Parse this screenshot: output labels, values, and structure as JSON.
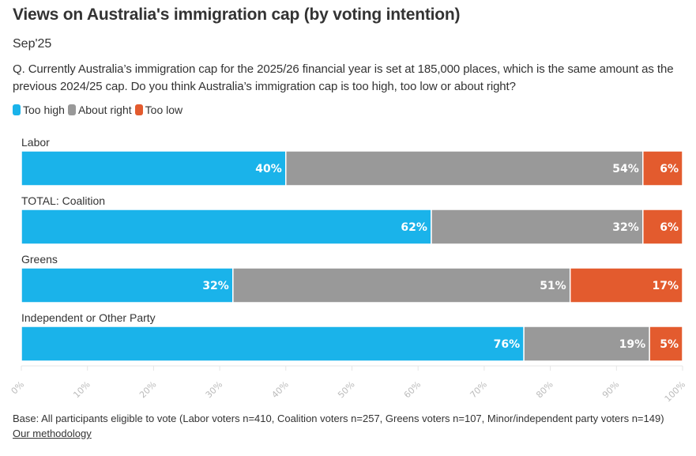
{
  "header": {
    "title": "Views on Australia's immigration cap (by voting intention)",
    "subtitle": "Sep'25",
    "question": "Q. Currently Australia’s immigration cap for the 2025/26 financial year is set at 185,000 places, which is the same amount as the previous 2024/25 cap. Do you think Australia’s immigration cap is too high, too low or about right?"
  },
  "legend": [
    {
      "label": "Too high",
      "color": "#1ab3ea"
    },
    {
      "label": "About right",
      "color": "#999999"
    },
    {
      "label": "Too low",
      "color": "#e35b2e"
    }
  ],
  "footer": {
    "base": "Base: All participants eligible to vote (Labor voters n=410, Coalition voters n=257, Greens voters n=107, Minor/independent party voters n=149)",
    "methodology_link": "Our methodology"
  },
  "chart_data": {
    "type": "bar",
    "orientation": "horizontal",
    "stacked": true,
    "title": "Views on Australia's immigration cap (by voting intention)",
    "subtitle": "Sep'25",
    "categories": [
      "Labor",
      "TOTAL: Coalition",
      "Greens",
      "Independent or Other Party"
    ],
    "series": [
      {
        "name": "Too high",
        "color": "#1ab3ea",
        "values": [
          40,
          62,
          32,
          76
        ]
      },
      {
        "name": "About right",
        "color": "#999999",
        "values": [
          54,
          32,
          51,
          19
        ]
      },
      {
        "name": "Too low",
        "color": "#e35b2e",
        "values": [
          6,
          6,
          17,
          5
        ]
      }
    ],
    "data_labels": [
      [
        "40%",
        "54%",
        "6%"
      ],
      [
        "62%",
        "32%",
        "6%"
      ],
      [
        "32%",
        "51%",
        "17%"
      ],
      [
        "76%",
        "19%",
        "5%"
      ]
    ],
    "xlim": [
      0,
      100
    ],
    "x_ticks": [
      "0%",
      "10%",
      "20%",
      "30%",
      "40%",
      "50%",
      "60%",
      "70%",
      "80%",
      "90%",
      "100%"
    ],
    "xlabel": "",
    "ylabel": "",
    "grid": true,
    "legend_position": "top-left"
  }
}
